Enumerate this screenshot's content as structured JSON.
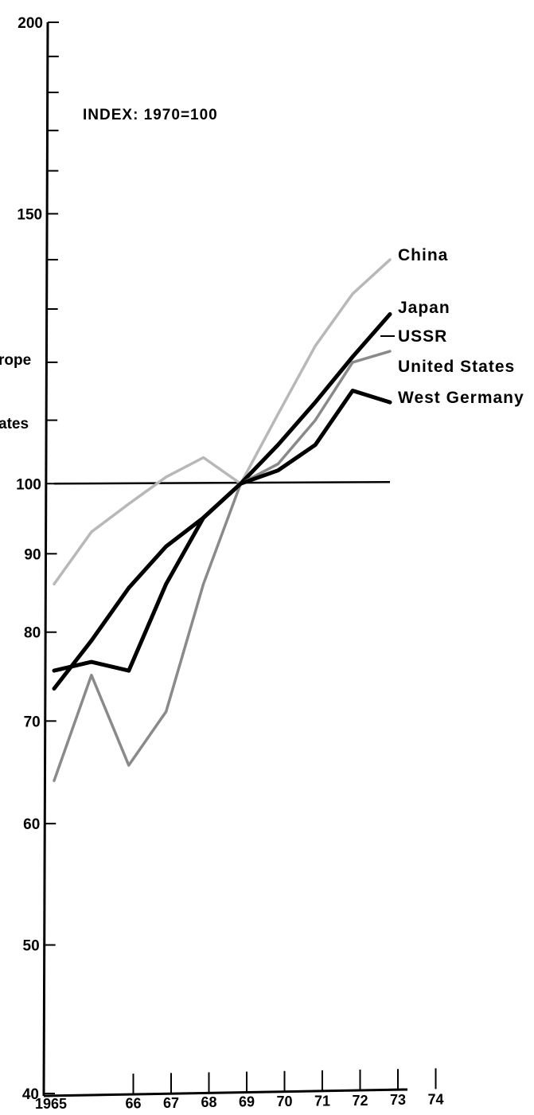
{
  "chart_data": {
    "type": "line",
    "title": "",
    "annotation": "INDEX: 1970=100",
    "xlabel": "",
    "ylabel": "",
    "y_scale": "log",
    "ylim": [
      40,
      200
    ],
    "xlim": [
      1965,
      1974
    ],
    "y_ticks": [
      40,
      50,
      60,
      70,
      80,
      90,
      100,
      150,
      200
    ],
    "y_minor_ticks": [
      110,
      120,
      130,
      140,
      160,
      170,
      180,
      190
    ],
    "x": [
      1965,
      1966,
      1967,
      1968,
      1969,
      1970,
      1971,
      1972,
      1973,
      1974
    ],
    "x_tick_labels": [
      "1965",
      "66",
      "67",
      "68",
      "69",
      "70",
      "71",
      "72",
      "73",
      "74"
    ],
    "reference_line": 100,
    "series": [
      {
        "name": "China",
        "color": "#b8b8b8",
        "values": [
          86,
          93,
          97,
          101,
          104,
          100,
          111,
          123,
          133,
          140
        ]
      },
      {
        "name": "Japan",
        "color": "#000000",
        "values": [
          73.5,
          79,
          85.5,
          91,
          95,
          100,
          106,
          113,
          121,
          129
        ]
      },
      {
        "name": "USSR",
        "color": "#8a8a8a",
        "values": [
          64,
          75,
          65.5,
          71,
          86,
          100,
          103,
          110,
          120,
          122
        ]
      },
      {
        "name": "United States",
        "color": "#cfcfcf",
        "values": [
          null,
          null,
          null,
          null,
          null,
          null,
          null,
          null,
          null,
          null
        ]
      },
      {
        "name": "West Germany",
        "color": "#000000",
        "values": [
          75.5,
          76.5,
          75.5,
          86,
          95,
          100,
          102,
          106,
          115,
          113
        ]
      }
    ],
    "cut_off_labels": [
      "rope",
      "ates"
    ],
    "legend_position": "right"
  }
}
